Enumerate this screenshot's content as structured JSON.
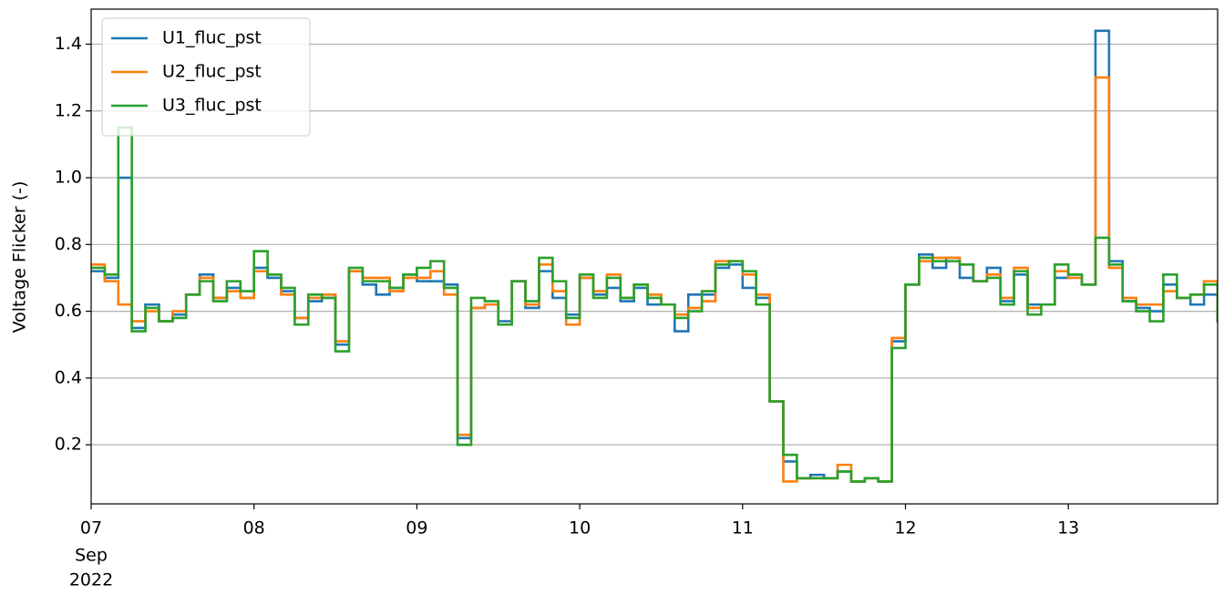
{
  "chart_data": {
    "type": "step",
    "ylabel": "Voltage Flicker (-)",
    "month": "Sep",
    "year": "2022",
    "xlim": [
      7,
      13.9167
    ],
    "ylim": [
      0.023,
      1.505
    ],
    "xticks": [
      {
        "value": 7,
        "label": "07"
      },
      {
        "value": 8,
        "label": "08"
      },
      {
        "value": 9,
        "label": "09"
      },
      {
        "value": 10,
        "label": "10"
      },
      {
        "value": 11,
        "label": "11"
      },
      {
        "value": 12,
        "label": "12"
      },
      {
        "value": 13,
        "label": "13"
      }
    ],
    "yticks": [
      0.2,
      0.4,
      0.6,
      0.8,
      {
        "value": 1,
        "label": "1.0"
      },
      1.2,
      1.4
    ],
    "grid": true,
    "legend": "upper left",
    "x": [
      7,
      7.0833,
      7.1667,
      7.25,
      7.3333,
      7.4167,
      7.5,
      7.5833,
      7.6667,
      7.75,
      7.8333,
      7.9167,
      8,
      8.0833,
      8.1667,
      8.25,
      8.3333,
      8.4167,
      8.5,
      8.5833,
      8.6667,
      8.75,
      8.8333,
      8.9167,
      9,
      9.0833,
      9.1667,
      9.25,
      9.3333,
      9.4167,
      9.5,
      9.5833,
      9.6667,
      9.75,
      9.8333,
      9.9167,
      10,
      10.0833,
      10.1667,
      10.25,
      10.3333,
      10.4167,
      10.5,
      10.5833,
      10.6667,
      10.75,
      10.8333,
      10.9167,
      11,
      11.0833,
      11.1667,
      11.25,
      11.3333,
      11.4167,
      11.5,
      11.5833,
      11.6667,
      11.75,
      11.8333,
      11.9167,
      12,
      12.0833,
      12.1667,
      12.25,
      12.3333,
      12.4167,
      12.5,
      12.5833,
      12.6667,
      12.75,
      12.8333,
      12.9167,
      13,
      13.0833,
      13.1667,
      13.25,
      13.3333,
      13.4167,
      13.5,
      13.5833,
      13.6667,
      13.75,
      13.8333,
      13.9167
    ],
    "series": [
      {
        "name": "U1_fluc_pst",
        "color": "#1f77b4",
        "values": [
          0.72,
          0.7,
          1.0,
          0.55,
          0.62,
          0.57,
          0.59,
          0.65,
          0.71,
          0.64,
          0.67,
          0.64,
          0.73,
          0.7,
          0.66,
          0.58,
          0.63,
          0.64,
          0.5,
          0.72,
          0.68,
          0.65,
          0.67,
          0.71,
          0.69,
          0.69,
          0.68,
          0.22,
          0.61,
          0.62,
          0.57,
          0.69,
          0.61,
          0.72,
          0.64,
          0.59,
          0.7,
          0.65,
          0.67,
          0.63,
          0.67,
          0.62,
          0.62,
          0.54,
          0.65,
          0.65,
          0.73,
          0.74,
          0.67,
          0.64,
          0.33,
          0.15,
          0.1,
          0.11,
          0.1,
          0.12,
          0.09,
          0.1,
          0.09,
          0.51,
          0.68,
          0.77,
          0.73,
          0.76,
          0.7,
          0.69,
          0.73,
          0.63,
          0.71,
          0.62,
          0.62,
          0.7,
          0.71,
          0.68,
          1.44,
          0.75,
          0.63,
          0.61,
          0.6,
          0.68,
          0.64,
          0.62,
          0.65,
          0.57
        ]
      },
      {
        "name": "U2_fluc_pst",
        "color": "#ff7f0e",
        "values": [
          0.74,
          0.69,
          0.62,
          0.57,
          0.6,
          0.57,
          0.6,
          0.65,
          0.7,
          0.64,
          0.66,
          0.64,
          0.72,
          0.71,
          0.65,
          0.58,
          0.64,
          0.65,
          0.51,
          0.72,
          0.7,
          0.7,
          0.66,
          0.7,
          0.7,
          0.72,
          0.65,
          0.23,
          0.61,
          0.62,
          0.56,
          0.69,
          0.62,
          0.74,
          0.66,
          0.56,
          0.7,
          0.66,
          0.71,
          0.64,
          0.68,
          0.65,
          0.62,
          0.59,
          0.61,
          0.63,
          0.75,
          0.75,
          0.71,
          0.65,
          0.33,
          0.09,
          0.1,
          0.1,
          0.1,
          0.14,
          0.09,
          0.1,
          0.09,
          0.52,
          0.68,
          0.75,
          0.76,
          0.76,
          0.74,
          0.69,
          0.71,
          0.64,
          0.73,
          0.61,
          0.62,
          0.72,
          0.7,
          0.68,
          1.3,
          0.73,
          0.64,
          0.62,
          0.62,
          0.66,
          0.64,
          0.65,
          0.69,
          0.57
        ]
      },
      {
        "name": "U3_fluc_pst",
        "color": "#2ca02c",
        "values": [
          0.73,
          0.71,
          1.15,
          0.54,
          0.61,
          0.57,
          0.58,
          0.65,
          0.69,
          0.63,
          0.69,
          0.66,
          0.78,
          0.71,
          0.67,
          0.56,
          0.65,
          0.64,
          0.48,
          0.73,
          0.69,
          0.69,
          0.67,
          0.71,
          0.73,
          0.75,
          0.67,
          0.2,
          0.64,
          0.63,
          0.56,
          0.69,
          0.63,
          0.76,
          0.69,
          0.58,
          0.71,
          0.64,
          0.7,
          0.64,
          0.68,
          0.64,
          0.62,
          0.58,
          0.6,
          0.66,
          0.74,
          0.75,
          0.72,
          0.62,
          0.33,
          0.17,
          0.1,
          0.1,
          0.1,
          0.12,
          0.09,
          0.1,
          0.09,
          0.49,
          0.68,
          0.76,
          0.75,
          0.75,
          0.74,
          0.69,
          0.7,
          0.62,
          0.72,
          0.59,
          0.62,
          0.74,
          0.71,
          0.68,
          0.82,
          0.74,
          0.63,
          0.6,
          0.57,
          0.71,
          0.64,
          0.65,
          0.68,
          0.57
        ]
      }
    ]
  }
}
